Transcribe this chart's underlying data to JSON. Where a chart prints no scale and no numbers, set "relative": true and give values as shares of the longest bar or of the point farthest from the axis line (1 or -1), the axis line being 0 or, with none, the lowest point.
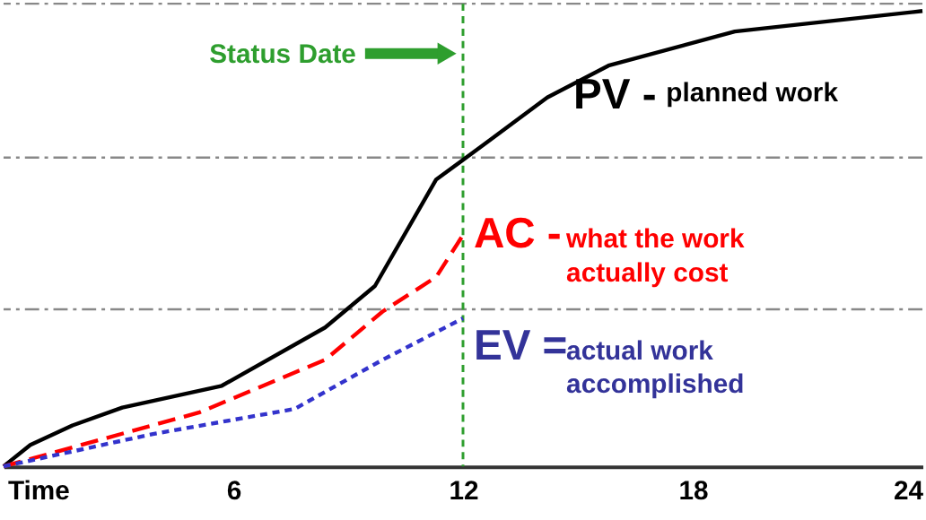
{
  "chart_data": {
    "type": "line",
    "relative": true,
    "xlabel": "Time",
    "xlim": [
      0,
      24
    ],
    "xticks": [
      6,
      12,
      18,
      24
    ],
    "series": [
      {
        "name": "PV -",
        "color": "#000000",
        "line_style": "solid",
        "x": [
          0,
          0.7,
          1.8,
          3.1,
          5.7,
          8.4,
          9.7,
          11.3,
          12.6,
          14.2,
          15.8,
          19.1,
          24
        ],
        "values": [
          0,
          0.047,
          0.09,
          0.129,
          0.177,
          0.305,
          0.396,
          0.63,
          0.71,
          0.81,
          0.88,
          0.955,
          1
        ]
      },
      {
        "name": "AC -",
        "color": "#ff0000",
        "line_style": "dashed",
        "x": [
          0,
          5.1,
          8.4,
          9.9,
          11.3,
          12
        ],
        "values": [
          0,
          0.118,
          0.234,
          0.34,
          0.416,
          0.508
        ]
      },
      {
        "name": "EV =",
        "color": "#3333cc",
        "line_style": "dotted",
        "x": [
          0,
          3.9,
          7.6,
          9.9,
          12
        ],
        "values": [
          0,
          0.071,
          0.126,
          0.234,
          0.325
        ]
      }
    ],
    "ref_lines": [
      {
        "axis": "x",
        "value": 12,
        "label": "Status Date",
        "color": "#2e9e2e",
        "line_style": "dotted"
      },
      {
        "axis": "y",
        "value": 0.345,
        "color": "#888888",
        "line_style": "dashed"
      },
      {
        "axis": "y",
        "value": 0.678,
        "color": "#888888",
        "line_style": "dashed"
      },
      {
        "axis": "y",
        "value": 1.016,
        "color": "#888888",
        "line_style": "dashed"
      }
    ],
    "annotations": [
      "planned work",
      "what the work\nactually cost",
      "actual work\naccomplished"
    ]
  }
}
